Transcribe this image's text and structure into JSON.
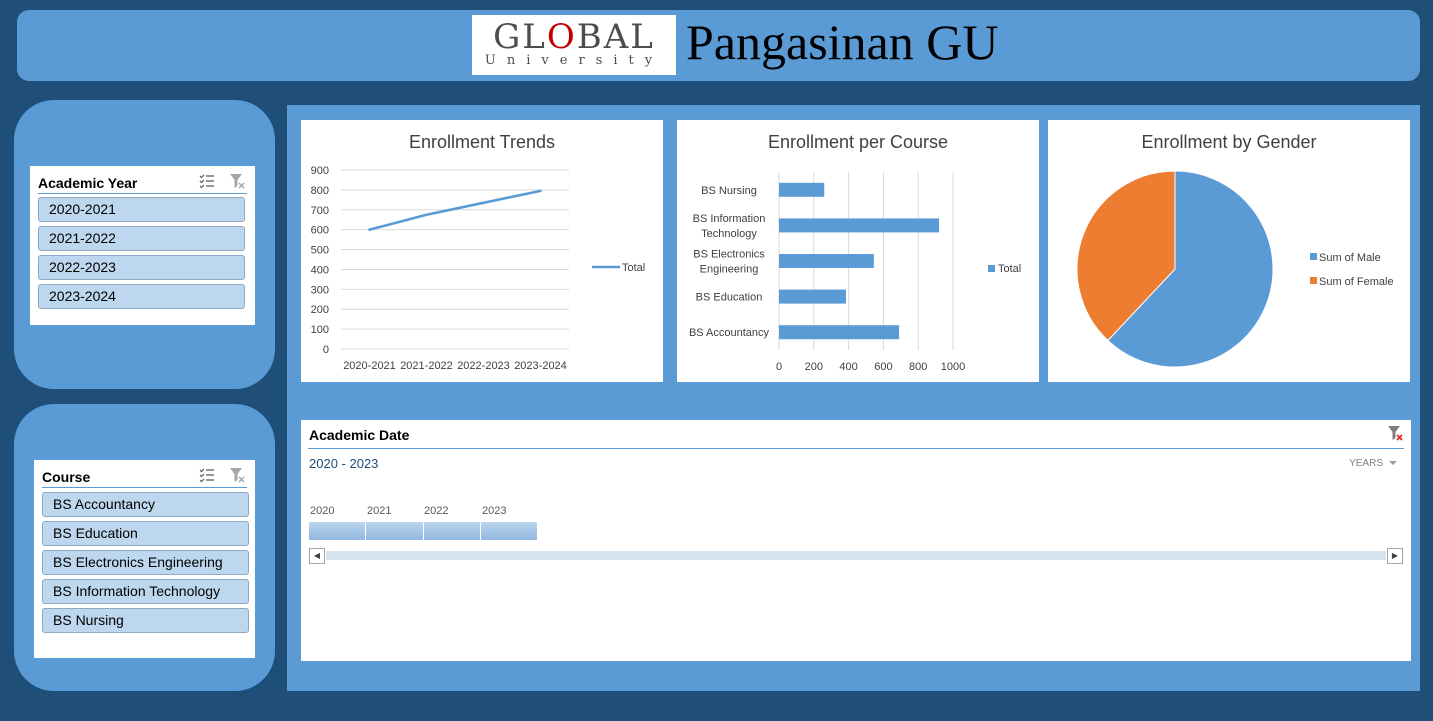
{
  "header": {
    "logo": {
      "word_parts": [
        "GL",
        "O",
        "BAL"
      ],
      "sub": "University"
    },
    "title": "Pangasinan GU"
  },
  "slicers": {
    "academic_year": {
      "title": "Academic Year",
      "items": [
        "2020-2021",
        "2021-2022",
        "2022-2023",
        "2023-2024"
      ]
    },
    "course": {
      "title": "Course",
      "items": [
        "BS Accountancy",
        "BS Education",
        "BS Electronics Engineering",
        "BS Information Technology",
        "BS Nursing"
      ]
    },
    "icons": [
      "multi-select-icon",
      "clear-filter-icon"
    ]
  },
  "chart_data": [
    {
      "type": "line",
      "title": "Enrollment Trends",
      "categories": [
        "2020-2021",
        "2021-2022",
        "2022-2023",
        "2023-2024"
      ],
      "series": [
        {
          "name": "Total",
          "values": [
            600,
            675,
            735,
            795
          ]
        }
      ],
      "ylim": [
        0,
        900
      ],
      "yticks": [
        0,
        100,
        200,
        300,
        400,
        500,
        600,
        700,
        800,
        900
      ],
      "grid": true,
      "legend": "right",
      "color": "#5b9bd5"
    },
    {
      "type": "bar",
      "title": "Enrollment per Course",
      "orientation": "horizontal",
      "categories": [
        "BS Nursing",
        "BS Information Technology",
        "BS Electronics Engineering",
        "BS Education",
        "BS Accountancy"
      ],
      "category_lines": [
        [
          "BS Nursing"
        ],
        [
          "BS Information",
          "Technology"
        ],
        [
          "BS Electronics",
          "Engineering"
        ],
        [
          "BS Education"
        ],
        [
          "BS Accountancy"
        ]
      ],
      "series": [
        {
          "name": "Total",
          "values": [
            260,
            920,
            545,
            385,
            690
          ]
        }
      ],
      "xlim": [
        0,
        1000
      ],
      "xticks": [
        0,
        200,
        400,
        600,
        800,
        1000
      ],
      "grid": true,
      "legend": "right",
      "color": "#5b9bd5"
    },
    {
      "type": "pie",
      "title": "Enrollment by Gender",
      "labels": [
        "Sum of Male",
        "Sum of Female"
      ],
      "values": [
        62,
        38
      ],
      "colors": [
        "#5b9bd5",
        "#ed7d31"
      ],
      "legend": "right"
    }
  ],
  "timeline": {
    "title": "Academic Date",
    "range_label": "2020 - 2023",
    "level_label": "YEARS",
    "years": [
      "2020",
      "2021",
      "2022",
      "2023"
    ],
    "scroll_left": "◀",
    "scroll_right": "▶"
  }
}
